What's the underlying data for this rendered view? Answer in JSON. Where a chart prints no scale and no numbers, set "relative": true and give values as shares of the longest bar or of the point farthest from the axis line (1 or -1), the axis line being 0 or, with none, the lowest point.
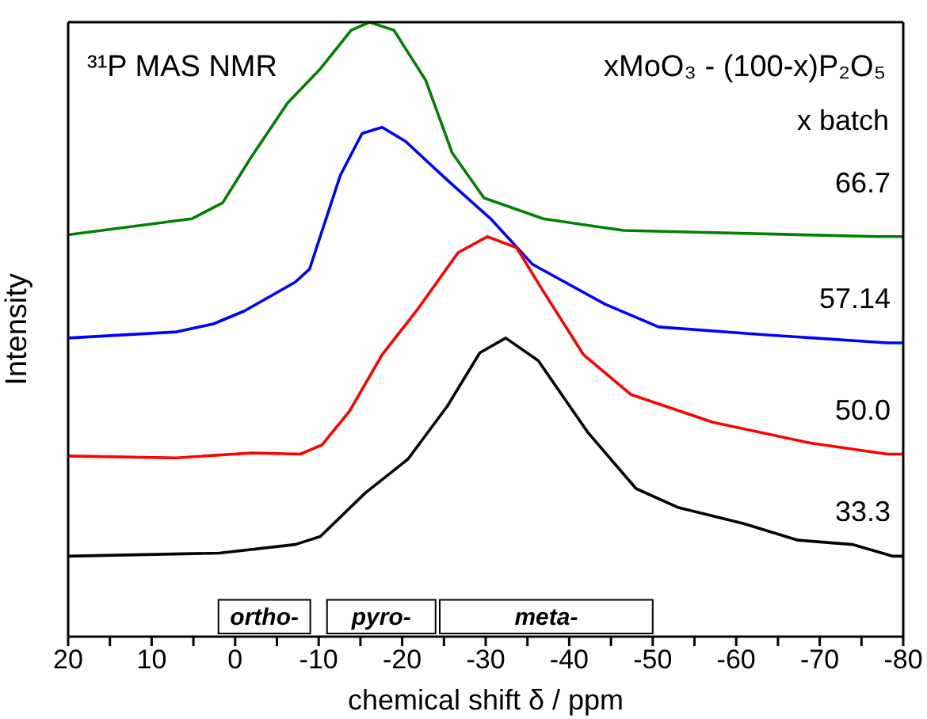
{
  "chart_data": {
    "type": "line",
    "relative": true,
    "xlabel": "chemical shift δ / ppm",
    "ylabel": "Intensity",
    "legend_title": "x batch",
    "annotations": [
      "³¹P MAS NMR",
      "xMoO₃ - (100-x)P₂O₅"
    ],
    "xlim": [
      20,
      -80
    ],
    "xticks": [
      20,
      {
        "value": 15,
        "label": null
      },
      10,
      {
        "value": 5,
        "label": null
      },
      0,
      {
        "value": -5,
        "label": null
      },
      -10,
      {
        "value": -15,
        "label": null
      },
      -20,
      {
        "value": -25,
        "label": null
      },
      -30,
      {
        "value": -35,
        "label": null
      },
      -40,
      {
        "value": -45,
        "label": null
      },
      -50,
      {
        "value": -55,
        "label": null
      },
      -60,
      {
        "value": -65,
        "label": null
      },
      -70,
      {
        "value": -75,
        "label": null
      },
      -80
    ],
    "bands": [
      {
        "axis": "x",
        "from": 2,
        "to": -9,
        "label": "ortho-"
      },
      {
        "axis": "x",
        "from": -11,
        "to": -24,
        "label": "pyro-"
      },
      {
        "axis": "x",
        "from": -24.5,
        "to": -50,
        "label": "meta-"
      }
    ],
    "series": [
      {
        "name": "66.7",
        "color": "#008000",
        "x": [
          20,
          5.2,
          1.5,
          -1.9,
          -6.3,
          -10.2,
          -13.9,
          -16.1,
          -19,
          -22.8,
          -26,
          -29.8,
          -36.9,
          -46.5,
          -76.9,
          -80
        ],
        "values": [
          0.654,
          0.68,
          0.706,
          0.78,
          0.869,
          0.924,
          0.987,
          1.0,
          0.987,
          0.906,
          0.787,
          0.714,
          0.68,
          0.661,
          0.651,
          0.651
        ]
      },
      {
        "name": "57.14",
        "color": "#0000ff",
        "x": [
          20,
          7,
          2.6,
          -1.1,
          -7.2,
          -8.9,
          -12.6,
          -15.2,
          -17.6,
          -20.4,
          -25.4,
          -30.6,
          -35.6,
          -44.3,
          -50.7,
          -63.7,
          -78.1,
          -80
        ],
        "values": [
          0.486,
          0.496,
          0.509,
          0.53,
          0.577,
          0.598,
          0.751,
          0.819,
          0.829,
          0.806,
          0.743,
          0.68,
          0.606,
          0.541,
          0.504,
          0.491,
          0.478,
          0.478
        ]
      },
      {
        "name": "50.0",
        "color": "#ff0000",
        "x": [
          20,
          7,
          -2,
          -7.8,
          -10.4,
          -13.7,
          -17.6,
          -21.7,
          -26.7,
          -30.2,
          -33.7,
          -36.9,
          -41.7,
          -47.4,
          -57.2,
          -68.9,
          -78.1,
          -80
        ],
        "values": [
          0.294,
          0.291,
          0.299,
          0.297,
          0.312,
          0.367,
          0.459,
          0.53,
          0.625,
          0.651,
          0.633,
          0.562,
          0.459,
          0.394,
          0.349,
          0.315,
          0.297,
          0.297
        ]
      },
      {
        "name": "33.3",
        "color": "#000000",
        "x": [
          20,
          1.9,
          -7.2,
          -10.2,
          -15.6,
          -20.7,
          -25.4,
          -29.3,
          -32.4,
          -36.3,
          -42.2,
          -48,
          -53.1,
          -60.9,
          -67.4,
          -73.9,
          -78.7,
          -80
        ],
        "values": [
          0.131,
          0.136,
          0.15,
          0.163,
          0.234,
          0.289,
          0.375,
          0.462,
          0.486,
          0.449,
          0.333,
          0.241,
          0.21,
          0.184,
          0.157,
          0.15,
          0.131,
          0.131
        ]
      }
    ]
  }
}
